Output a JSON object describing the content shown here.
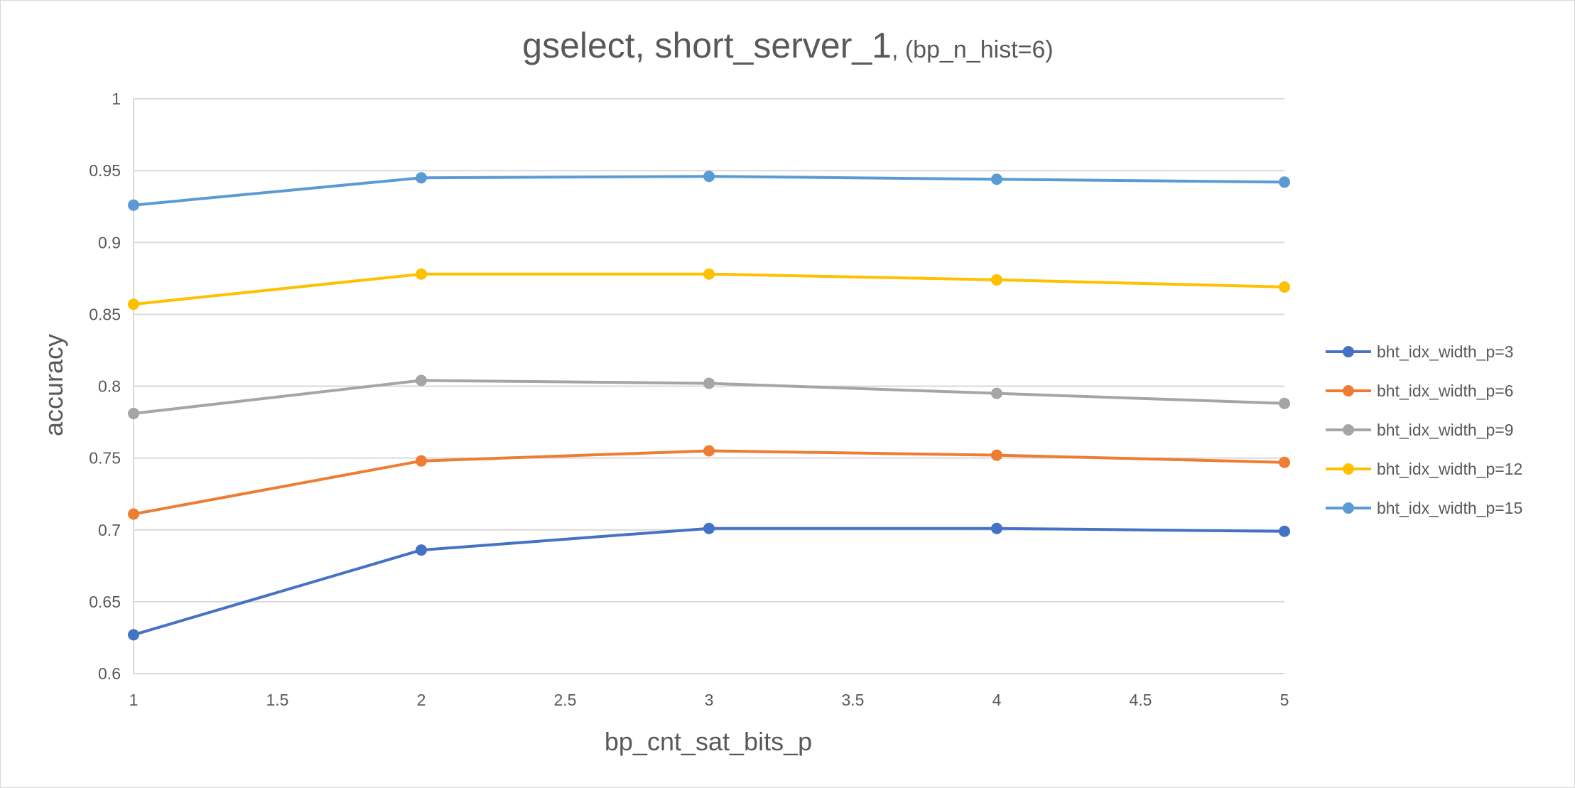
{
  "chart_data": {
    "type": "line",
    "title": "gselect, short_server_1",
    "subtitle": ", (bp_n_hist=6)",
    "xlabel": "bp_cnt_sat_bits_p",
    "ylabel": "accuracy",
    "xlim": [
      1,
      5
    ],
    "ylim": [
      0.6,
      1
    ],
    "x_ticks": [
      "1",
      "1.5",
      "2",
      "2.5",
      "3",
      "3.5",
      "4",
      "4.5",
      "5"
    ],
    "y_ticks": [
      "0.6",
      "0.65",
      "0.7",
      "0.75",
      "0.8",
      "0.85",
      "0.9",
      "0.95",
      "1"
    ],
    "x": [
      1,
      2,
      3,
      4,
      5
    ],
    "grid": "horizontal",
    "legend_position": "right",
    "series": [
      {
        "name": "bht_idx_width_p=3",
        "color": "#4472C4",
        "values": [
          0.627,
          0.686,
          0.701,
          0.701,
          0.699
        ]
      },
      {
        "name": "bht_idx_width_p=6",
        "color": "#ED7D31",
        "values": [
          0.711,
          0.748,
          0.755,
          0.752,
          0.747
        ]
      },
      {
        "name": "bht_idx_width_p=9",
        "color": "#A5A5A5",
        "values": [
          0.781,
          0.804,
          0.802,
          0.795,
          0.788
        ]
      },
      {
        "name": "bht_idx_width_p=12",
        "color": "#FFC000",
        "values": [
          0.857,
          0.878,
          0.878,
          0.874,
          0.869
        ]
      },
      {
        "name": "bht_idx_width_p=15",
        "color": "#5B9BD5",
        "values": [
          0.926,
          0.945,
          0.946,
          0.944,
          0.942
        ]
      }
    ]
  }
}
